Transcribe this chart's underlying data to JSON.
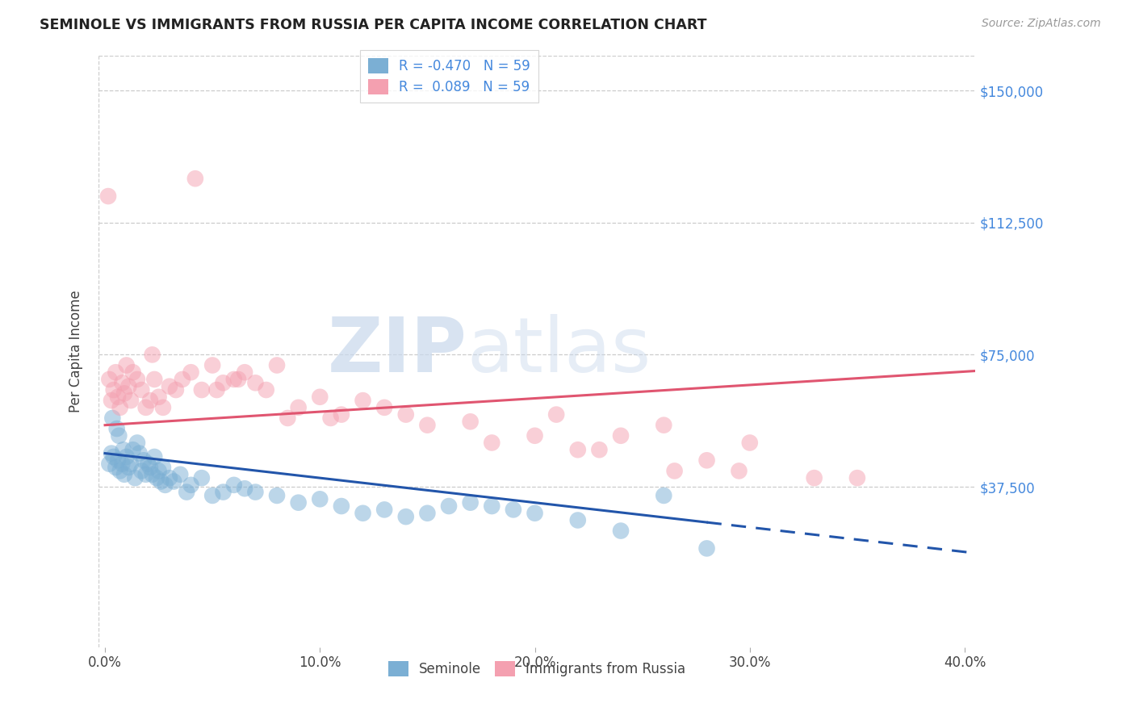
{
  "title": "SEMINOLE VS IMMIGRANTS FROM RUSSIA PER CAPITA INCOME CORRELATION CHART",
  "source": "Source: ZipAtlas.com",
  "ylabel_label": "Per Capita Income",
  "xtick_labels": [
    "0.0%",
    "10.0%",
    "20.0%",
    "30.0%",
    "40.0%"
  ],
  "xtick_vals": [
    0.0,
    10.0,
    20.0,
    30.0,
    40.0
  ],
  "ytick_vals": [
    0,
    37500,
    75000,
    112500,
    150000
  ],
  "ytick_labels": [
    "",
    "$37,500",
    "$75,000",
    "$112,500",
    "$150,000"
  ],
  "xlim": [
    -0.3,
    40.5
  ],
  "ylim": [
    -8000,
    160000
  ],
  "legend_r_blue": "-0.470",
  "legend_n_blue": "59",
  "legend_r_pink": " 0.089",
  "legend_n_pink": "59",
  "legend_label_blue": "Seminole",
  "legend_label_pink": "Immigrants from Russia",
  "blue_color": "#7BAFD4",
  "pink_color": "#F4A0B0",
  "blue_line_color": "#2255AA",
  "pink_line_color": "#E05570",
  "watermark_zip": "ZIP",
  "watermark_atlas": "atlas",
  "blue_line_intercept": 47000,
  "blue_line_slope": -700,
  "blue_solid_end": 28.0,
  "blue_dash_end": 40.5,
  "pink_line_intercept": 55000,
  "pink_line_slope": 380,
  "pink_line_start": 0,
  "pink_line_end": 40.5,
  "blue_scatter_x": [
    0.2,
    0.3,
    0.4,
    0.5,
    0.6,
    0.7,
    0.8,
    0.9,
    1.0,
    1.1,
    1.2,
    1.3,
    1.4,
    1.5,
    1.6,
    1.7,
    1.8,
    1.9,
    2.0,
    2.1,
    2.2,
    2.3,
    2.4,
    2.5,
    2.6,
    2.7,
    2.8,
    3.0,
    3.2,
    3.5,
    3.8,
    4.0,
    4.5,
    5.0,
    5.5,
    6.0,
    6.5,
    7.0,
    8.0,
    9.0,
    10.0,
    11.0,
    12.0,
    13.0,
    14.0,
    15.0,
    16.0,
    17.0,
    18.0,
    19.0,
    20.0,
    22.0,
    24.0,
    26.0,
    28.0,
    0.35,
    0.55,
    0.65,
    0.85
  ],
  "blue_scatter_y": [
    44000,
    47000,
    46000,
    43000,
    45000,
    42000,
    44000,
    41000,
    46000,
    43000,
    44000,
    48000,
    40000,
    50000,
    47000,
    42000,
    45000,
    41000,
    44000,
    43000,
    41000,
    46000,
    40000,
    42000,
    39000,
    43000,
    38000,
    40000,
    39000,
    41000,
    36000,
    38000,
    40000,
    35000,
    36000,
    38000,
    37000,
    36000,
    35000,
    33000,
    34000,
    32000,
    30000,
    31000,
    29000,
    30000,
    32000,
    33000,
    32000,
    31000,
    30000,
    28000,
    25000,
    35000,
    20000,
    57000,
    54000,
    52000,
    48000
  ],
  "pink_scatter_x": [
    0.2,
    0.3,
    0.4,
    0.5,
    0.6,
    0.7,
    0.8,
    0.9,
    1.0,
    1.1,
    1.2,
    1.3,
    1.5,
    1.7,
    1.9,
    2.1,
    2.3,
    2.5,
    2.7,
    3.0,
    3.3,
    3.6,
    4.0,
    4.5,
    5.0,
    5.5,
    6.0,
    6.5,
    7.0,
    7.5,
    8.0,
    9.0,
    10.0,
    11.0,
    12.0,
    13.0,
    14.0,
    15.0,
    17.0,
    18.0,
    20.0,
    22.0,
    24.0,
    26.0,
    28.0,
    30.0,
    35.0,
    2.2,
    5.2,
    6.2,
    8.5,
    10.5,
    21.0,
    23.0,
    26.5,
    29.5,
    33.0,
    4.2,
    0.15
  ],
  "pink_scatter_y": [
    68000,
    62000,
    65000,
    70000,
    63000,
    60000,
    67000,
    64000,
    72000,
    66000,
    62000,
    70000,
    68000,
    65000,
    60000,
    62000,
    68000,
    63000,
    60000,
    66000,
    65000,
    68000,
    70000,
    65000,
    72000,
    67000,
    68000,
    70000,
    67000,
    65000,
    72000,
    60000,
    63000,
    58000,
    62000,
    60000,
    58000,
    55000,
    56000,
    50000,
    52000,
    48000,
    52000,
    55000,
    45000,
    50000,
    40000,
    75000,
    65000,
    68000,
    57000,
    57000,
    58000,
    48000,
    42000,
    42000,
    40000,
    125000,
    120000
  ]
}
